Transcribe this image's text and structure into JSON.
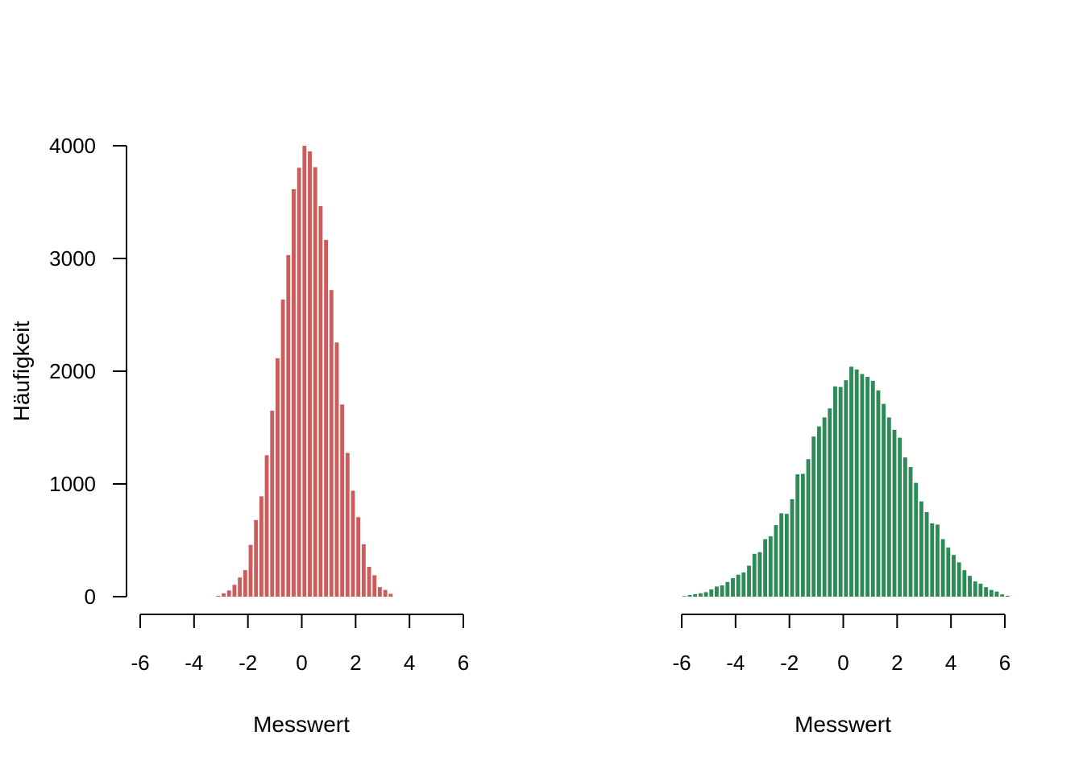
{
  "chart_data": [
    {
      "type": "bar",
      "title": "",
      "xlabel": "Messwert",
      "ylabel": "Häufigkeit",
      "color": "#cd5c5c",
      "xlim": [
        -6,
        6
      ],
      "ylim": [
        0,
        4000
      ],
      "xticks": [
        -6,
        -4,
        -2,
        0,
        2,
        4,
        6
      ],
      "yticks": [
        0,
        1000,
        2000,
        3000,
        4000
      ],
      "bin_width": 0.2,
      "bin_start": -3.2,
      "values": [
        8,
        30,
        55,
        105,
        170,
        235,
        460,
        680,
        890,
        1255,
        1650,
        2115,
        2635,
        3030,
        3615,
        3805,
        4000,
        3950,
        3810,
        3465,
        3165,
        2720,
        2255,
        1705,
        1275,
        940,
        705,
        465,
        265,
        190,
        85,
        60,
        25
      ]
    },
    {
      "type": "bar",
      "title": "",
      "xlabel": "Messwert",
      "ylabel": "",
      "color": "#2e8b57",
      "xlim": [
        -6,
        6
      ],
      "ylim": [
        0,
        4000
      ],
      "xticks": [
        -6,
        -4,
        -2,
        0,
        2,
        4,
        6
      ],
      "bin_width": 0.2,
      "bin_start": -6.0,
      "values": [
        5,
        15,
        22,
        30,
        40,
        65,
        90,
        100,
        130,
        165,
        195,
        215,
        275,
        380,
        395,
        510,
        535,
        635,
        740,
        735,
        865,
        1085,
        1090,
        1220,
        1420,
        1510,
        1590,
        1670,
        1865,
        1860,
        1920,
        2040,
        2015,
        1975,
        1950,
        1915,
        1830,
        1710,
        1590,
        1480,
        1410,
        1235,
        1150,
        1010,
        845,
        750,
        650,
        640,
        510,
        435,
        370,
        305,
        235,
        185,
        135,
        115,
        85,
        60,
        45,
        20,
        8
      ]
    }
  ]
}
